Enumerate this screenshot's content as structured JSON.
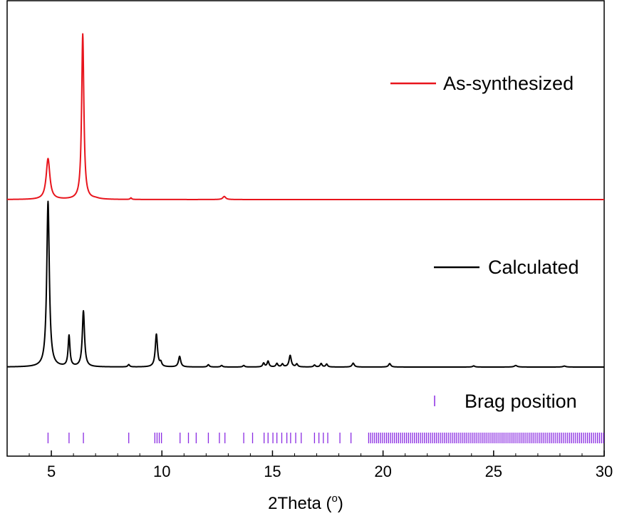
{
  "chart_data": {
    "type": "line",
    "title": "",
    "xlabel": "2Theta (o)",
    "xlabel_main": "2Theta (",
    "xlabel_sup": "o",
    "xlabel_close": ")",
    "ylabel": "",
    "xlim": [
      3,
      30
    ],
    "x_ticks": [
      5,
      10,
      15,
      20,
      25,
      30
    ],
    "x_tick_labels": [
      "5",
      "10",
      "15",
      "20",
      "25",
      "30"
    ],
    "y_axis": "arbitrary intensity, no ticks",
    "colors": {
      "as_synthesized": "#e8141c",
      "calculated": "#000000",
      "bragg": "#8a2be2"
    },
    "series": [
      {
        "name": "As-synthesized",
        "baseline": 0,
        "peaks": [
          {
            "x": 4.85,
            "height": 0.212,
            "width": 0.1
          },
          {
            "x": 6.42,
            "height": 0.86,
            "width": 0.06
          },
          {
            "x": 8.6,
            "height": 0.008,
            "width": 0.04
          },
          {
            "x": 12.82,
            "height": 0.016,
            "width": 0.08
          },
          {
            "x": 7.0,
            "height": 0.004,
            "width": 0.2
          }
        ]
      },
      {
        "name": "Calculated",
        "baseline": 0,
        "peaks": [
          {
            "x": 4.85,
            "height": 0.86,
            "width": 0.07
          },
          {
            "x": 5.8,
            "height": 0.16,
            "width": 0.05
          },
          {
            "x": 6.45,
            "height": 0.29,
            "width": 0.06
          },
          {
            "x": 8.5,
            "height": 0.012,
            "width": 0.05
          },
          {
            "x": 9.75,
            "height": 0.17,
            "width": 0.06
          },
          {
            "x": 9.95,
            "height": 0.02,
            "width": 0.05
          },
          {
            "x": 10.8,
            "height": 0.055,
            "width": 0.06
          },
          {
            "x": 12.1,
            "height": 0.012,
            "width": 0.05
          },
          {
            "x": 12.7,
            "height": 0.008,
            "width": 0.05
          },
          {
            "x": 13.7,
            "height": 0.008,
            "width": 0.05
          },
          {
            "x": 14.6,
            "height": 0.02,
            "width": 0.05
          },
          {
            "x": 14.8,
            "height": 0.03,
            "width": 0.05
          },
          {
            "x": 15.2,
            "height": 0.018,
            "width": 0.05
          },
          {
            "x": 15.45,
            "height": 0.015,
            "width": 0.05
          },
          {
            "x": 15.8,
            "height": 0.06,
            "width": 0.06
          },
          {
            "x": 16.1,
            "height": 0.015,
            "width": 0.05
          },
          {
            "x": 16.9,
            "height": 0.01,
            "width": 0.05
          },
          {
            "x": 17.2,
            "height": 0.018,
            "width": 0.05
          },
          {
            "x": 17.45,
            "height": 0.015,
            "width": 0.05
          },
          {
            "x": 18.65,
            "height": 0.02,
            "width": 0.06
          },
          {
            "x": 20.3,
            "height": 0.018,
            "width": 0.06
          },
          {
            "x": 24.1,
            "height": 0.006,
            "width": 0.06
          },
          {
            "x": 26.0,
            "height": 0.008,
            "width": 0.08
          },
          {
            "x": 28.2,
            "height": 0.005,
            "width": 0.08
          }
        ]
      }
    ],
    "bragg_positions": {
      "name": "Brag position",
      "discrete": [
        4.85,
        5.8,
        6.45,
        8.5,
        9.68,
        9.78,
        9.88,
        9.98,
        10.82,
        11.2,
        11.55,
        12.1,
        12.6,
        12.85,
        13.7,
        14.1,
        14.62,
        14.8,
        15.02,
        15.2,
        15.42,
        15.65,
        15.82,
        16.05,
        16.3,
        16.9,
        17.1,
        17.3,
        17.5,
        18.05,
        18.55
      ],
      "dense_range": [
        19.35,
        30.0
      ],
      "dense_spacing": 0.09
    },
    "legend": [
      "As-synthesized",
      "Calculated",
      "Brag position"
    ],
    "legend_placement": "right, beside each trace"
  }
}
